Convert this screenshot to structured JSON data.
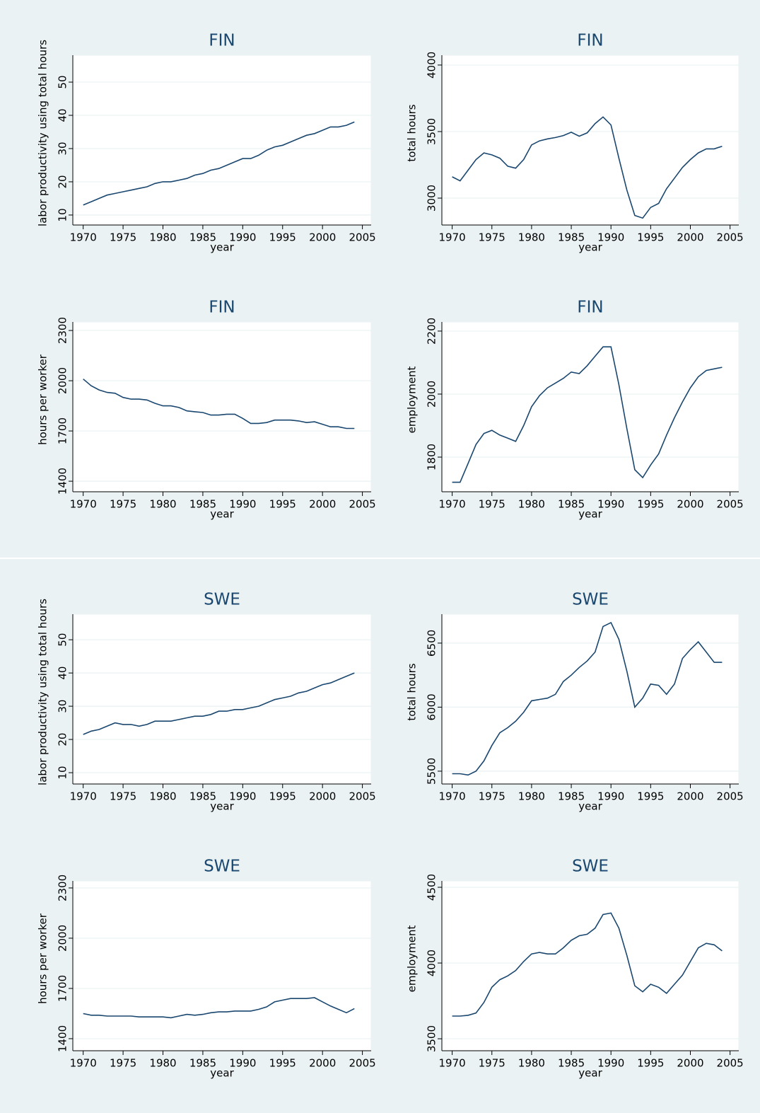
{
  "chart_data": [
    {
      "type": "line",
      "title": "FIN",
      "x_label": "year",
      "y_label": "labor productivity using total hours",
      "x": [
        1970,
        1971,
        1972,
        1973,
        1974,
        1975,
        1976,
        1977,
        1978,
        1979,
        1980,
        1981,
        1982,
        1983,
        1984,
        1985,
        1986,
        1987,
        1988,
        1989,
        1990,
        1991,
        1992,
        1993,
        1994,
        1995,
        1996,
        1997,
        1998,
        1999,
        2000,
        2001,
        2002,
        2003,
        2004
      ],
      "values": [
        13,
        14,
        15,
        16,
        16.5,
        17,
        17.5,
        18,
        18.5,
        19.5,
        20,
        20,
        20.5,
        21,
        22,
        22.5,
        23.5,
        24,
        25,
        26,
        27,
        27,
        28,
        29.5,
        30.5,
        31,
        32,
        33,
        34,
        34.5,
        35.5,
        36.5,
        36.5,
        37,
        38
      ],
      "color": "#1a476f",
      "xlim": [
        1968.7,
        2006.1
      ],
      "xticks": [
        1970,
        1975,
        1980,
        1985,
        1990,
        1995,
        2000,
        2005
      ],
      "ylim": [
        7,
        58.1
      ],
      "yticks": [
        10,
        20,
        30,
        40,
        50
      ],
      "grid": true
    },
    {
      "type": "line",
      "title": "FIN",
      "x_label": "year",
      "y_label": "total hours",
      "x": [
        1970,
        1971,
        1972,
        1973,
        1974,
        1975,
        1976,
        1977,
        1978,
        1979,
        1980,
        1981,
        1982,
        1983,
        1984,
        1985,
        1986,
        1987,
        1988,
        1989,
        1990,
        1991,
        1992,
        1993,
        1994,
        1995,
        1996,
        1997,
        1998,
        1999,
        2000,
        2001,
        2002,
        2003,
        2004
      ],
      "values": [
        3160,
        3130,
        3210,
        3290,
        3340,
        3325,
        3300,
        3240,
        3225,
        3290,
        3400,
        3430,
        3445,
        3455,
        3470,
        3495,
        3465,
        3490,
        3560,
        3610,
        3550,
        3300,
        3060,
        2870,
        2850,
        2930,
        2960,
        3070,
        3150,
        3230,
        3290,
        3340,
        3370,
        3370,
        3390
      ],
      "color": "#1a476f",
      "xlim": [
        1968.7,
        2006.1
      ],
      "xticks": [
        1970,
        1975,
        1980,
        1985,
        1990,
        1995,
        2000,
        2005
      ],
      "ylim": [
        2798,
        4074
      ],
      "yticks": [
        3000,
        3500,
        4000
      ],
      "grid": true
    },
    {
      "type": "line",
      "title": "FIN",
      "x_label": "year",
      "y_label": "hours per worker",
      "x": [
        1970,
        1971,
        1972,
        1973,
        1974,
        1975,
        1976,
        1977,
        1978,
        1979,
        1980,
        1981,
        1982,
        1983,
        1984,
        1985,
        1986,
        1987,
        1988,
        1989,
        1990,
        1991,
        1992,
        1993,
        1994,
        1995,
        1996,
        1997,
        1998,
        1999,
        2000,
        2001,
        2002,
        2003,
        2004
      ],
      "values": [
        2010,
        1970,
        1945,
        1930,
        1925,
        1900,
        1890,
        1890,
        1885,
        1865,
        1850,
        1850,
        1840,
        1820,
        1815,
        1810,
        1795,
        1795,
        1800,
        1800,
        1775,
        1745,
        1745,
        1750,
        1765,
        1765,
        1765,
        1760,
        1750,
        1755,
        1740,
        1725,
        1725,
        1715,
        1715
      ],
      "color": "#1a476f",
      "xlim": [
        1968.7,
        2006.1
      ],
      "xticks": [
        1970,
        1975,
        1980,
        1985,
        1990,
        1995,
        2000,
        2005
      ],
      "ylim": [
        1337,
        2351
      ],
      "yticks": [
        1400,
        1700,
        2000,
        2300
      ],
      "grid": true
    },
    {
      "type": "line",
      "title": "FIN",
      "x_label": "year",
      "y_label": "employment",
      "x": [
        1970,
        1971,
        1972,
        1973,
        1974,
        1975,
        1976,
        1977,
        1978,
        1979,
        1980,
        1981,
        1982,
        1983,
        1984,
        1985,
        1986,
        1987,
        1988,
        1989,
        1990,
        1991,
        1992,
        1993,
        1994,
        1995,
        1996,
        1997,
        1998,
        1999,
        2000,
        2001,
        2002,
        2003,
        2004
      ],
      "values": [
        1720,
        1720,
        1780,
        1840,
        1875,
        1885,
        1870,
        1860,
        1850,
        1900,
        1960,
        1995,
        2020,
        2035,
        2050,
        2070,
        2065,
        2090,
        2120,
        2150,
        2150,
        2030,
        1890,
        1760,
        1735,
        1775,
        1810,
        1870,
        1925,
        1975,
        2020,
        2055,
        2075,
        2080,
        2085
      ],
      "color": "#1a476f",
      "xlim": [
        1968.7,
        2006.1
      ],
      "xticks": [
        1970,
        1975,
        1980,
        1985,
        1990,
        1995,
        2000,
        2005
      ],
      "ylim": [
        1690,
        2229
      ],
      "yticks": [
        1800,
        2000,
        2200
      ],
      "grid": true
    },
    {
      "type": "line",
      "title": "SWE",
      "x_label": "year",
      "y_label": "labor productivity using total hours",
      "x": [
        1970,
        1971,
        1972,
        1973,
        1974,
        1975,
        1976,
        1977,
        1978,
        1979,
        1980,
        1981,
        1982,
        1983,
        1984,
        1985,
        1986,
        1987,
        1988,
        1989,
        1990,
        1991,
        1992,
        1993,
        1994,
        1995,
        1996,
        1997,
        1998,
        1999,
        2000,
        2001,
        2002,
        2003,
        2004
      ],
      "values": [
        21.5,
        22.5,
        23,
        24,
        25,
        24.5,
        24.5,
        24,
        24.5,
        25.5,
        25.5,
        25.5,
        26,
        26.5,
        27,
        27,
        27.5,
        28.5,
        28.5,
        29,
        29,
        29.5,
        30,
        31,
        32,
        32.5,
        33,
        34,
        34.5,
        35.5,
        36.5,
        37,
        38,
        39,
        40
      ],
      "color": "#1a476f",
      "xlim": [
        1968.7,
        2006.1
      ],
      "xticks": [
        1970,
        1975,
        1980,
        1985,
        1990,
        1995,
        2000,
        2005
      ],
      "ylim": [
        6.6,
        57.7
      ],
      "yticks": [
        10,
        20,
        30,
        40,
        50
      ],
      "grid": true
    },
    {
      "type": "line",
      "title": "SWE",
      "x_label": "year",
      "y_label": "total hours",
      "x": [
        1970,
        1971,
        1972,
        1973,
        1974,
        1975,
        1976,
        1977,
        1978,
        1979,
        1980,
        1981,
        1982,
        1983,
        1984,
        1985,
        1986,
        1987,
        1988,
        1989,
        1990,
        1991,
        1992,
        1993,
        1994,
        1995,
        1996,
        1997,
        1998,
        1999,
        2000,
        2001,
        2002,
        2003,
        2004
      ],
      "values": [
        5480,
        5480,
        5470,
        5500,
        5580,
        5700,
        5800,
        5840,
        5890,
        5960,
        6050,
        6060,
        6070,
        6100,
        6200,
        6250,
        6310,
        6360,
        6430,
        6630,
        6660,
        6530,
        6280,
        6000,
        6070,
        6180,
        6170,
        6100,
        6180,
        6380,
        6450,
        6510,
        6430,
        6350,
        6350
      ],
      "color": "#1a476f",
      "xlim": [
        1968.7,
        2006.1
      ],
      "xticks": [
        1970,
        1975,
        1980,
        1985,
        1990,
        1995,
        2000,
        2005
      ],
      "ylim": [
        5400,
        6726
      ],
      "yticks": [
        5500,
        6000,
        6500
      ],
      "grid": true
    },
    {
      "type": "line",
      "title": "SWE",
      "x_label": "year",
      "y_label": "hours per worker",
      "x": [
        1970,
        1971,
        1972,
        1973,
        1974,
        1975,
        1976,
        1977,
        1978,
        1979,
        1980,
        1981,
        1982,
        1983,
        1984,
        1985,
        1986,
        1987,
        1988,
        1989,
        1990,
        1991,
        1992,
        1993,
        1994,
        1995,
        1996,
        1997,
        1998,
        1999,
        2000,
        2001,
        2002,
        2003,
        2004
      ],
      "values": [
        1550,
        1540,
        1540,
        1535,
        1535,
        1535,
        1535,
        1530,
        1530,
        1530,
        1530,
        1525,
        1535,
        1545,
        1540,
        1545,
        1555,
        1560,
        1560,
        1565,
        1565,
        1565,
        1575,
        1590,
        1620,
        1630,
        1640,
        1640,
        1640,
        1645,
        1620,
        1595,
        1575,
        1555,
        1580
      ],
      "color": "#1a476f",
      "xlim": [
        1968.7,
        2006.1
      ],
      "xticks": [
        1970,
        1975,
        1980,
        1985,
        1990,
        1995,
        2000,
        2005
      ],
      "ylim": [
        1328,
        2342
      ],
      "yticks": [
        1400,
        1700,
        2000,
        2300
      ],
      "grid": true
    },
    {
      "type": "line",
      "title": "SWE",
      "x_label": "year",
      "y_label": "employment",
      "x": [
        1970,
        1971,
        1972,
        1973,
        1974,
        1975,
        1976,
        1977,
        1978,
        1979,
        1980,
        1981,
        1982,
        1983,
        1984,
        1985,
        1986,
        1987,
        1988,
        1989,
        1990,
        1991,
        1992,
        1993,
        1994,
        1995,
        1996,
        1997,
        1998,
        1999,
        2000,
        2001,
        2002,
        2003,
        2004
      ],
      "values": [
        3650,
        3650,
        3655,
        3670,
        3740,
        3840,
        3890,
        3915,
        3950,
        4010,
        4060,
        4070,
        4060,
        4060,
        4100,
        4150,
        4180,
        4190,
        4230,
        4320,
        4330,
        4230,
        4050,
        3850,
        3810,
        3860,
        3840,
        3800,
        3860,
        3920,
        4010,
        4100,
        4130,
        4120,
        4080
      ],
      "color": "#1a476f",
      "xlim": [
        1968.7,
        2006.1
      ],
      "xticks": [
        1970,
        1975,
        1980,
        1985,
        1990,
        1995,
        2000,
        2005
      ],
      "ylim": [
        3421,
        4542
      ],
      "yticks": [
        3500,
        4000,
        4500
      ],
      "grid": true
    }
  ]
}
